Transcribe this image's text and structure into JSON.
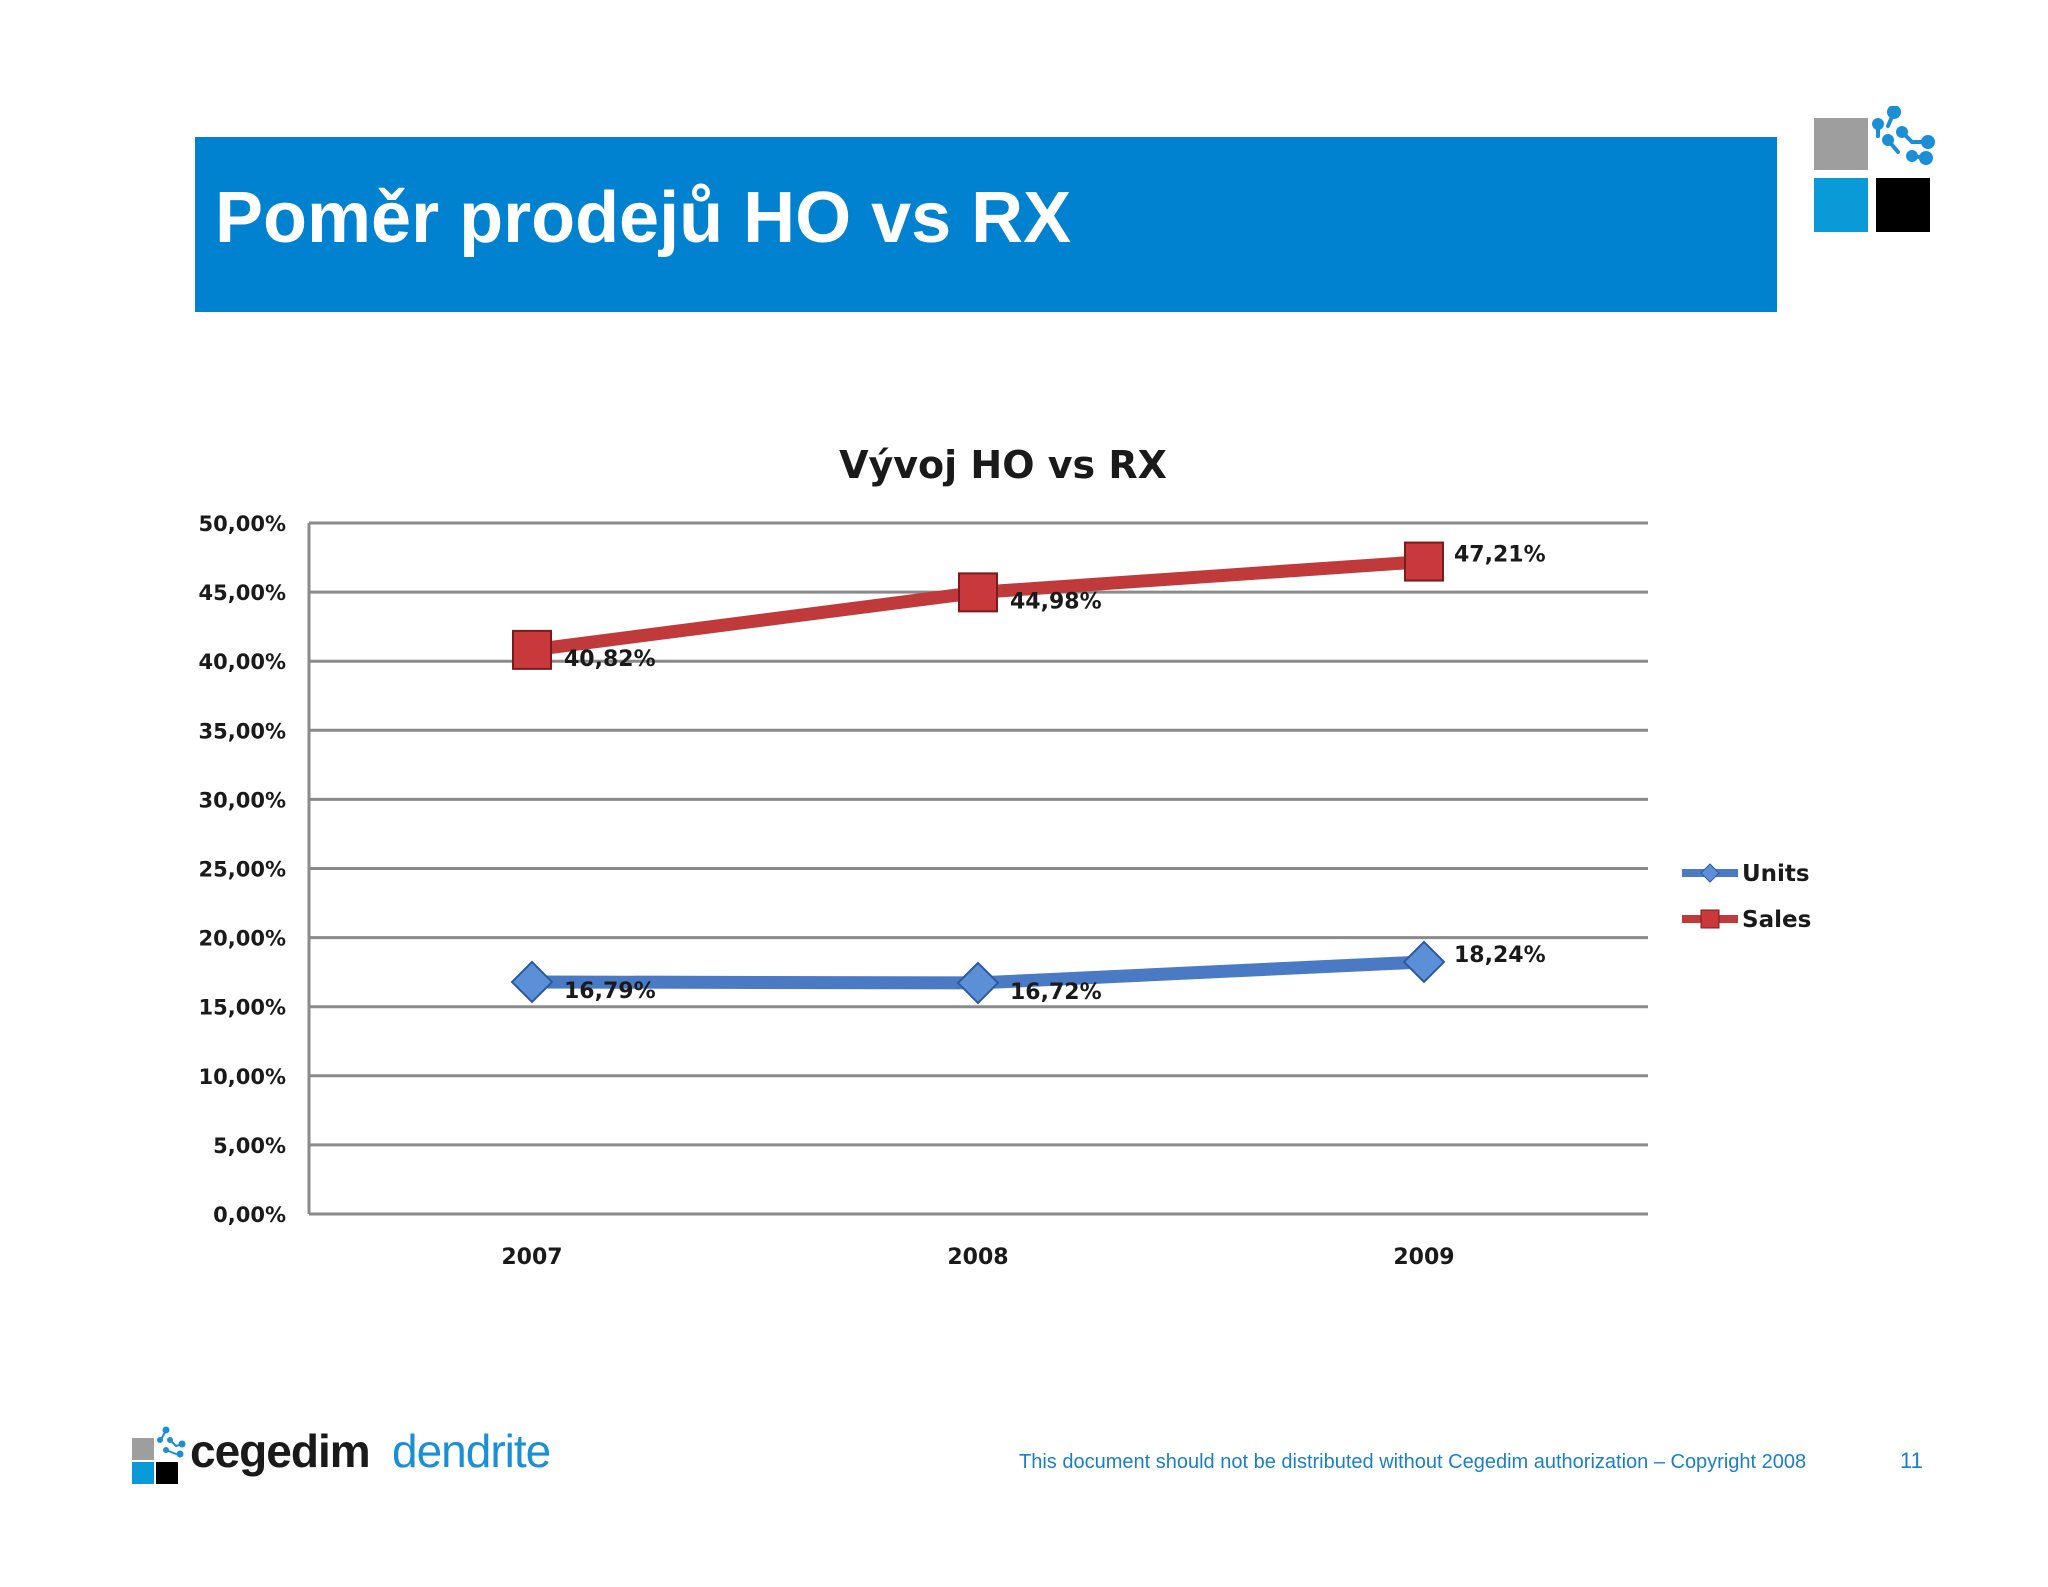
{
  "slide": {
    "title": "Poměr prodejů HO vs RX",
    "page_number": "11",
    "copyright": "This document should not be distributed without Cegedim authorization – Copyright 2008",
    "brand_color": "#0082d0"
  },
  "logo": {
    "word_primary": "cegedim",
    "word_secondary": "dendrite"
  },
  "chart_data": {
    "type": "line",
    "title": "Vývoj HO vs RX",
    "categories": [
      "2007",
      "2008",
      "2009"
    ],
    "series": [
      {
        "name": "Units",
        "values": [
          16.79,
          16.72,
          18.24
        ],
        "labels": [
          "16,79%",
          "16,72%",
          "18,24%"
        ],
        "color": "#4a7ac4",
        "marker": "diamond"
      },
      {
        "name": "Sales",
        "values": [
          40.82,
          44.98,
          47.21
        ],
        "labels": [
          "40,82%",
          "44,98%",
          "47,21%"
        ],
        "color": "#c0393b",
        "marker": "square"
      }
    ],
    "ylim": [
      0,
      50
    ],
    "yticks": [
      0,
      5,
      10,
      15,
      20,
      25,
      30,
      35,
      40,
      45,
      50
    ],
    "ytick_labels": [
      "0,00%",
      "5,00%",
      "10,00%",
      "15,00%",
      "20,00%",
      "25,00%",
      "30,00%",
      "35,00%",
      "40,00%",
      "45,00%",
      "50,00%"
    ],
    "xlabel": "",
    "ylabel": "",
    "grid": true,
    "legend_position": "right"
  }
}
